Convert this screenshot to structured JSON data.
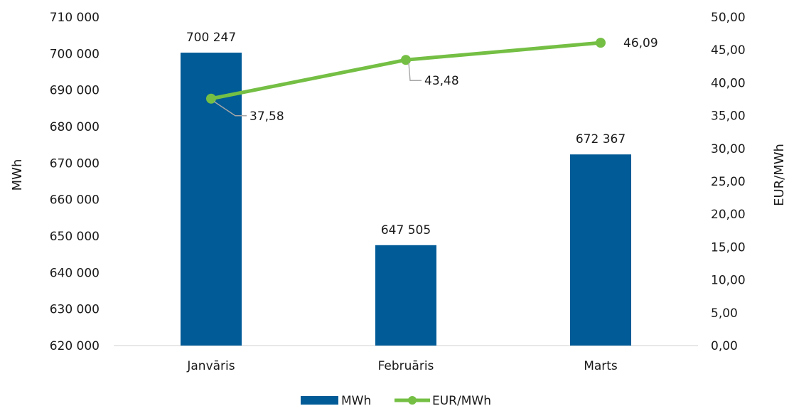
{
  "chart_data": {
    "type": "bar",
    "categories": [
      "Janvāris",
      "Februāris",
      "Marts"
    ],
    "series": [
      {
        "name": "MWh",
        "type": "bar",
        "axis": "left",
        "color": "#005b96",
        "values": [
          700247,
          647505,
          672367
        ],
        "labels": [
          "700 247",
          "647 505",
          "672 367"
        ]
      },
      {
        "name": "EUR/MWh",
        "type": "line",
        "axis": "right",
        "color": "#74bf44",
        "values": [
          37.58,
          43.48,
          46.09
        ],
        "labels": [
          "37,58",
          "43,48",
          "46,09"
        ]
      }
    ],
    "y_left": {
      "label": "MWh",
      "ylim": [
        620000,
        710000
      ],
      "ticks": [
        "620 000",
        "630 000",
        "640 000",
        "650 000",
        "660 000",
        "670 000",
        "680 000",
        "690 000",
        "700 000",
        "710 000"
      ]
    },
    "y_right": {
      "label": "EUR/MWh",
      "ylim": [
        0,
        50
      ],
      "ticks": [
        "0,00",
        "5,00",
        "10,00",
        "15,00",
        "20,00",
        "25,00",
        "30,00",
        "35,00",
        "40,00",
        "45,00",
        "50,00"
      ]
    },
    "grid": false,
    "legend": "bottom-center"
  }
}
